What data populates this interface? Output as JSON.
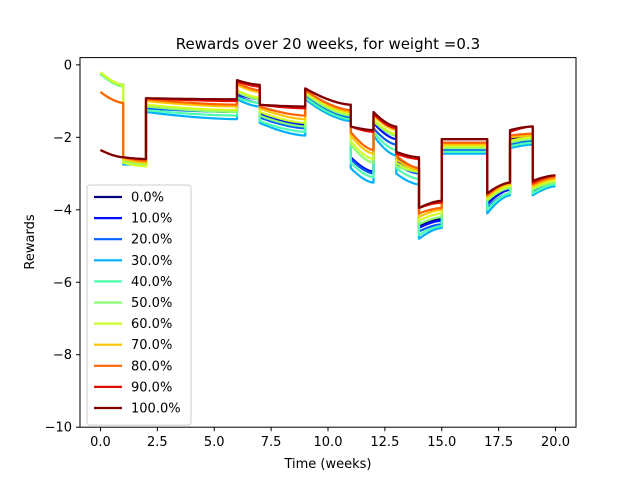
{
  "chart_data": {
    "type": "line",
    "title": "Rewards over 20 weeks, for weight =0.3",
    "xlabel": "Time (weeks)",
    "ylabel": "Rewards",
    "xlim": [
      -0.9,
      20.9
    ],
    "ylim": [
      -10,
      0.2
    ],
    "xticks": [
      0,
      2.5,
      5,
      7.5,
      10,
      12.5,
      15,
      17.5,
      20
    ],
    "xtick_labels": [
      "0.0",
      "2.5",
      "5.0",
      "7.5",
      "10.0",
      "12.5",
      "15.0",
      "17.5",
      "20.0"
    ],
    "yticks": [
      0,
      -2,
      -4,
      -6,
      -8,
      -10
    ],
    "ytick_labels": [
      "0",
      "−2",
      "−4",
      "−6",
      "−8",
      "−10"
    ],
    "grid": false,
    "legend_position": "lower-left",
    "weekly_jumps": {
      "segment_starts": [
        0,
        1,
        2,
        6,
        7,
        9,
        11,
        12,
        13,
        14,
        15,
        17,
        18,
        19
      ],
      "ends_at": 20
    },
    "series": [
      {
        "name": "0.0%",
        "color": "#00007f",
        "segments": [
          [
            -0.25,
            -0.55
          ],
          [
            -2.6,
            -2.75
          ],
          [
            -1.15,
            -1.3
          ],
          [
            -0.75,
            -0.95
          ],
          [
            -1.35,
            -1.65
          ],
          [
            -0.7,
            -1.3
          ],
          [
            -2.55,
            -2.95
          ],
          [
            -1.55,
            -1.95
          ],
          [
            -2.55,
            -2.85
          ],
          [
            -4.45,
            -4.25
          ],
          [
            -2.15,
            -2.15
          ],
          [
            -3.8,
            -3.4
          ],
          [
            -2.05,
            -1.95
          ],
          [
            -3.45,
            -3.25
          ]
        ]
      },
      {
        "name": "10.0%",
        "color": "#0010ff",
        "segments": [
          [
            -0.25,
            -0.55
          ],
          [
            -2.65,
            -2.75
          ],
          [
            -1.15,
            -1.3
          ],
          [
            -0.8,
            -0.95
          ],
          [
            -1.35,
            -1.65
          ],
          [
            -0.75,
            -1.35
          ],
          [
            -2.55,
            -2.95
          ],
          [
            -1.6,
            -2.05
          ],
          [
            -2.65,
            -2.9
          ],
          [
            -4.5,
            -4.3
          ],
          [
            -2.25,
            -2.25
          ],
          [
            -3.85,
            -3.45
          ],
          [
            -2.15,
            -2.05
          ],
          [
            -3.5,
            -3.3
          ]
        ]
      },
      {
        "name": "20.0%",
        "color": "#0060ff",
        "segments": [
          [
            -0.25,
            -0.55
          ],
          [
            -2.7,
            -2.75
          ],
          [
            -1.2,
            -1.3
          ],
          [
            -0.85,
            -1.05
          ],
          [
            -1.45,
            -1.75
          ],
          [
            -0.85,
            -1.45
          ],
          [
            -2.6,
            -3.0
          ],
          [
            -1.75,
            -2.2
          ],
          [
            -2.75,
            -3.0
          ],
          [
            -4.6,
            -4.4
          ],
          [
            -2.35,
            -2.35
          ],
          [
            -3.95,
            -3.55
          ],
          [
            -2.2,
            -2.1
          ],
          [
            -3.5,
            -3.3
          ]
        ]
      },
      {
        "name": "30.0%",
        "color": "#00b0ff",
        "segments": [
          [
            -0.25,
            -0.55
          ],
          [
            -2.75,
            -2.75
          ],
          [
            -1.3,
            -1.5
          ],
          [
            -0.95,
            -1.15
          ],
          [
            -1.6,
            -1.95
          ],
          [
            -0.95,
            -1.55
          ],
          [
            -2.85,
            -3.25
          ],
          [
            -1.95,
            -2.5
          ],
          [
            -3.0,
            -3.3
          ],
          [
            -4.8,
            -4.5
          ],
          [
            -2.45,
            -2.45
          ],
          [
            -4.1,
            -3.6
          ],
          [
            -2.3,
            -2.2
          ],
          [
            -3.6,
            -3.35
          ]
        ]
      },
      {
        "name": "40.0%",
        "color": "#4effad",
        "segments": [
          [
            -0.25,
            -0.6
          ],
          [
            -2.7,
            -2.75
          ],
          [
            -1.25,
            -1.4
          ],
          [
            -0.9,
            -1.05
          ],
          [
            -1.55,
            -1.85
          ],
          [
            -0.9,
            -1.5
          ],
          [
            -2.7,
            -3.1
          ],
          [
            -1.85,
            -2.35
          ],
          [
            -2.85,
            -3.15
          ],
          [
            -4.7,
            -4.45
          ],
          [
            -2.4,
            -2.4
          ],
          [
            -4.0,
            -3.55
          ],
          [
            -2.25,
            -2.15
          ],
          [
            -3.55,
            -3.3
          ]
        ]
      },
      {
        "name": "50.0%",
        "color": "#8bff6e",
        "segments": [
          [
            -0.22,
            -0.6
          ],
          [
            -2.65,
            -2.75
          ],
          [
            -1.15,
            -1.3
          ],
          [
            -0.75,
            -0.95
          ],
          [
            -1.4,
            -1.7
          ],
          [
            -0.8,
            -1.4
          ],
          [
            -2.2,
            -2.7
          ],
          [
            -1.55,
            -1.95
          ],
          [
            -2.8,
            -2.95
          ],
          [
            -4.4,
            -4.2
          ],
          [
            -2.3,
            -2.3
          ],
          [
            -3.75,
            -3.4
          ],
          [
            -2.15,
            -2.05
          ],
          [
            -3.45,
            -3.25
          ]
        ]
      },
      {
        "name": "60.0%",
        "color": "#d2ff27",
        "segments": [
          [
            -0.2,
            -0.55
          ],
          [
            -2.7,
            -2.8
          ],
          [
            -1.1,
            -1.25
          ],
          [
            -0.7,
            -0.9
          ],
          [
            -1.3,
            -1.6
          ],
          [
            -0.75,
            -1.35
          ],
          [
            -2.1,
            -2.6
          ],
          [
            -1.5,
            -1.9
          ],
          [
            -2.7,
            -2.95
          ],
          [
            -4.3,
            -4.1
          ],
          [
            -2.25,
            -2.25
          ],
          [
            -3.7,
            -3.35
          ],
          [
            -2.1,
            -2.0
          ],
          [
            -3.4,
            -3.2
          ]
        ]
      },
      {
        "name": "70.0%",
        "color": "#ffc400",
        "segments": [
          [
            -0.75,
            -1.05
          ],
          [
            -2.6,
            -2.7
          ],
          [
            -1.0,
            -1.15
          ],
          [
            -0.55,
            -0.75
          ],
          [
            -1.2,
            -1.5
          ],
          [
            -0.7,
            -1.3
          ],
          [
            -1.95,
            -2.45
          ],
          [
            -1.4,
            -1.8
          ],
          [
            -2.6,
            -2.9
          ],
          [
            -4.2,
            -4.0
          ],
          [
            -2.2,
            -2.2
          ],
          [
            -3.65,
            -3.3
          ],
          [
            -2.0,
            -1.95
          ],
          [
            -3.35,
            -3.15
          ]
        ]
      },
      {
        "name": "80.0%",
        "color": "#ff6300",
        "segments": [
          [
            -0.75,
            -1.05
          ],
          [
            -2.55,
            -2.65
          ],
          [
            -0.95,
            -1.1
          ],
          [
            -0.5,
            -0.7
          ],
          [
            -1.15,
            -1.4
          ],
          [
            -0.7,
            -1.25
          ],
          [
            -1.85,
            -2.35
          ],
          [
            -1.35,
            -1.75
          ],
          [
            -2.5,
            -2.85
          ],
          [
            -4.1,
            -3.95
          ],
          [
            -2.15,
            -2.15
          ],
          [
            -3.6,
            -3.25
          ],
          [
            -1.95,
            -1.9
          ],
          [
            -3.3,
            -3.1
          ]
        ]
      },
      {
        "name": "90.0%",
        "color": "#e60b00",
        "segments": [
          [
            -2.35,
            -2.55
          ],
          [
            -2.55,
            -2.6
          ],
          [
            -0.92,
            -1.0
          ],
          [
            -0.45,
            -0.6
          ],
          [
            -1.1,
            -1.2
          ],
          [
            -0.65,
            -1.1
          ],
          [
            -1.7,
            -1.85
          ],
          [
            -1.35,
            -1.75
          ],
          [
            -2.45,
            -2.6
          ],
          [
            -3.95,
            -3.8
          ],
          [
            -2.05,
            -2.05
          ],
          [
            -3.55,
            -3.25
          ],
          [
            -1.85,
            -1.7
          ],
          [
            -3.25,
            -3.05
          ]
        ]
      },
      {
        "name": "100.0%",
        "color": "#7f0000",
        "segments": [
          [
            -2.35,
            -2.55
          ],
          [
            -2.55,
            -2.6
          ],
          [
            -0.92,
            -0.95
          ],
          [
            -0.42,
            -0.55
          ],
          [
            -1.1,
            -1.15
          ],
          [
            -0.65,
            -1.1
          ],
          [
            -1.7,
            -1.8
          ],
          [
            -1.3,
            -1.7
          ],
          [
            -2.4,
            -2.55
          ],
          [
            -3.95,
            -3.75
          ],
          [
            -2.05,
            -2.05
          ],
          [
            -3.55,
            -3.25
          ],
          [
            -1.8,
            -1.7
          ],
          [
            -3.2,
            -3.05
          ]
        ]
      }
    ]
  }
}
